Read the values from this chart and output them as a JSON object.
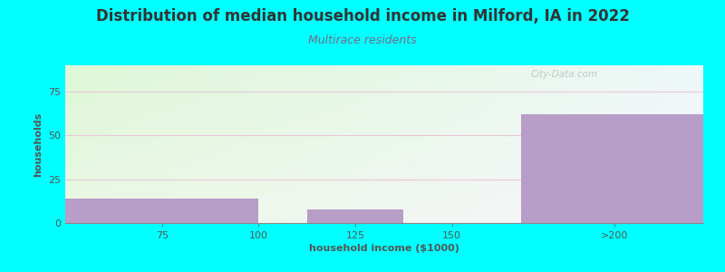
{
  "title": "Distribution of median household income in Milford, IA in 2022",
  "subtitle": "Multirace residents",
  "xlabel": "household income ($1000)",
  "ylabel": "households",
  "bar_labels": [
    "75",
    "100",
    "125",
    "150",
    ">200"
  ],
  "bar_values": [
    14,
    0,
    8,
    0,
    62
  ],
  "bar_color": "#b89dc8",
  "background_color": "#00ffff",
  "grad_topleft": [
    0.87,
    0.97,
    0.84
  ],
  "grad_topright": [
    0.93,
    0.97,
    0.97
  ],
  "grad_botleft": [
    0.92,
    0.97,
    0.9
  ],
  "grad_botright": [
    0.97,
    0.96,
    0.99
  ],
  "title_color": "#333333",
  "subtitle_color": "#7a6a8a",
  "axis_label_color": "#555555",
  "tick_color": "#555555",
  "grid_color": "#e8c8d8",
  "ylim": [
    0,
    90
  ],
  "yticks": [
    0,
    25,
    50,
    75
  ],
  "watermark": "City-Data.com",
  "title_fontsize": 12,
  "subtitle_fontsize": 9,
  "label_fontsize": 8,
  "bar_lefts": [
    50,
    100,
    112.5,
    137.5,
    168
  ],
  "bar_widths": [
    50,
    0,
    25,
    0,
    47
  ],
  "xlim": [
    50,
    215
  ]
}
